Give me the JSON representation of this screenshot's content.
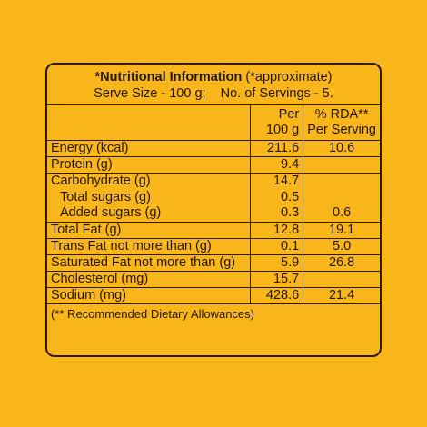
{
  "header": {
    "title_bold": "*Nutritional Information",
    "title_note": " (*approximate)",
    "serve_line": "Serve Size - 100 g;    No. of Servings - 5."
  },
  "columns": {
    "per_100g": "Per\n100 g",
    "rda": "% RDA**\nPer Serving"
  },
  "rows": [
    {
      "name": "Energy (kcal)",
      "per": "211.6",
      "rda": "10.6"
    },
    {
      "name": "Protein (g)",
      "per": "9.4",
      "rda": ""
    },
    {
      "name": "Carbohydrate (g)",
      "per": "14.7",
      "rda": ""
    },
    {
      "name": "Total sugars (g)",
      "per": "0.5",
      "rda": ""
    },
    {
      "name": "Added sugars (g)",
      "per": "0.3",
      "rda": "0.6"
    },
    {
      "name": "Total Fat (g)",
      "per": "12.8",
      "rda": "19.1"
    },
    {
      "name": "Trans Fat not more than (g)",
      "per": "0.1",
      "rda": "5.0"
    },
    {
      "name": "Saturated Fat not more than (g)",
      "per": "5.9",
      "rda": "26.8"
    },
    {
      "name": "Cholesterol (mg)",
      "per": "15.7",
      "rda": ""
    },
    {
      "name": "Sodium (mg)",
      "per": "428.6",
      "rda": "21.4"
    }
  ],
  "footnote": "(** Recommended Dietary Allowances)"
}
